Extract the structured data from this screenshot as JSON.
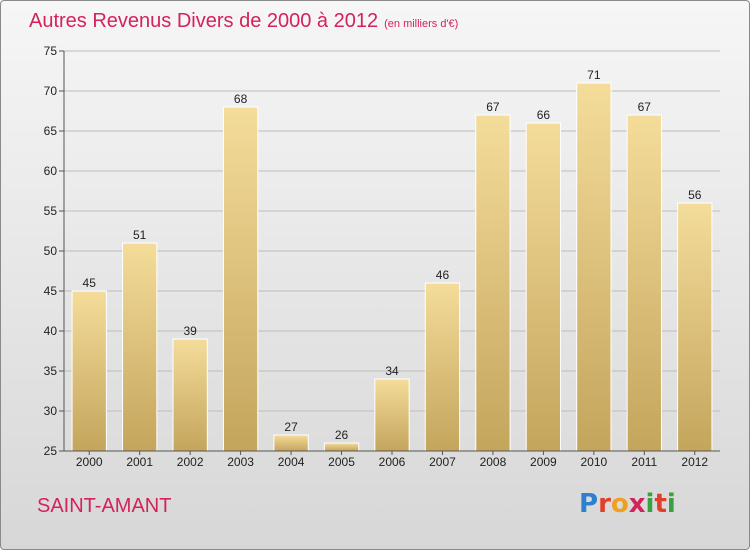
{
  "header": {
    "title": "Autres Revenus Divers de 2000 à 2012",
    "subtitle": "(en milliers d'€)"
  },
  "footer": {
    "city": "SAINT-AMANT",
    "logo_letters": [
      "P",
      "r",
      "o",
      "x",
      "i",
      "t",
      "i"
    ],
    "logo_colors": [
      "#2f7fcf",
      "#e0402a",
      "#f0a020",
      "#d4225a",
      "#3aa040",
      "#e0402a",
      "#3aa040"
    ]
  },
  "colors": {
    "bar_top": "#f4dc9a",
    "bar_bottom": "#c4a55c",
    "bar_edge": "#ffffff",
    "title": "#d4225a"
  },
  "chart_data": {
    "type": "bar",
    "categories": [
      "2000",
      "2001",
      "2002",
      "2003",
      "2004",
      "2005",
      "2006",
      "2007",
      "2008",
      "2009",
      "2010",
      "2011",
      "2012"
    ],
    "values": [
      45,
      51,
      39,
      68,
      27,
      26,
      34,
      46,
      67,
      66,
      71,
      67,
      56
    ],
    "ylim": [
      25,
      75
    ],
    "yticks": [
      25,
      30,
      35,
      40,
      45,
      50,
      55,
      60,
      65,
      70,
      75
    ],
    "grid": true,
    "data_labels": true
  }
}
